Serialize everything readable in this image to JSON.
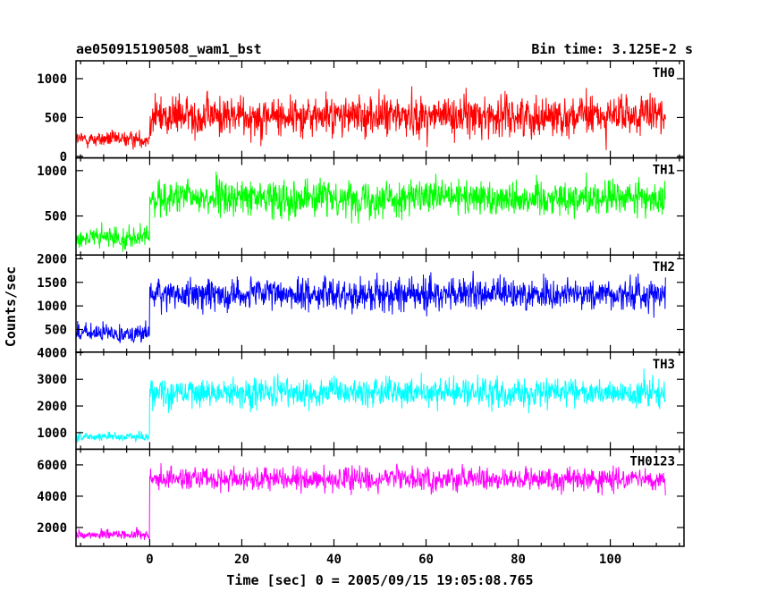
{
  "title": "ae050915190508_wam1_bst",
  "bin_time": "Bin time: 3.125E-2 s",
  "xlabel": "Time [sec] 0 = 2005/09/15 19:05:08.765",
  "ylabel": "Counts/sec",
  "chart_data": {
    "type": "line",
    "title": "ae050915190508_wam1_bst",
    "xlabel": "Time [sec] 0 = 2005/09/15 19:05:08.765",
    "ylabel": "Counts/sec",
    "xlim": [
      -16,
      116
    ],
    "xticks": [
      0,
      20,
      40,
      60,
      80,
      100
    ],
    "onset_time": 0,
    "data_start": -16,
    "data_end": 112,
    "panels": [
      {
        "name": "TH0",
        "color": "#ff0000",
        "ylim": [
          -20,
          1230
        ],
        "yticks": [
          0,
          500,
          1000
        ],
        "pre_level": 220,
        "pre_low": 30,
        "pre_high": 480,
        "post_level": 520,
        "post_low": 80,
        "post_high": 1230
      },
      {
        "name": "TH1",
        "color": "#00ff00",
        "ylim": [
          70,
          1140
        ],
        "yticks": [
          500,
          1000
        ],
        "pre_level": 260,
        "pre_low": 80,
        "pre_high": 600,
        "post_level": 700,
        "post_low": 280,
        "post_high": 1140
      },
      {
        "name": "TH2",
        "color": "#0000ff",
        "ylim": [
          20,
          2080
        ],
        "yticks": [
          500,
          1000,
          1500,
          2000
        ],
        "pre_level": 420,
        "pre_low": 150,
        "pre_high": 1000,
        "post_level": 1250,
        "post_low": 600,
        "post_high": 2080
      },
      {
        "name": "TH3",
        "color": "#00ffff",
        "ylim": [
          380,
          4020
        ],
        "yticks": [
          1000,
          2000,
          3000,
          4000
        ],
        "pre_level": 860,
        "pre_low": 550,
        "pre_high": 1400,
        "post_level": 2500,
        "post_low": 1650,
        "post_high": 4020
      },
      {
        "name": "TH0123",
        "color": "#ff00ff",
        "ylim": [
          800,
          7000
        ],
        "yticks": [
          2000,
          4000,
          6000
        ],
        "pre_level": 1550,
        "pre_low": 1000,
        "pre_high": 2300,
        "post_level": 5100,
        "post_low": 3600,
        "post_high": 6800
      }
    ]
  }
}
